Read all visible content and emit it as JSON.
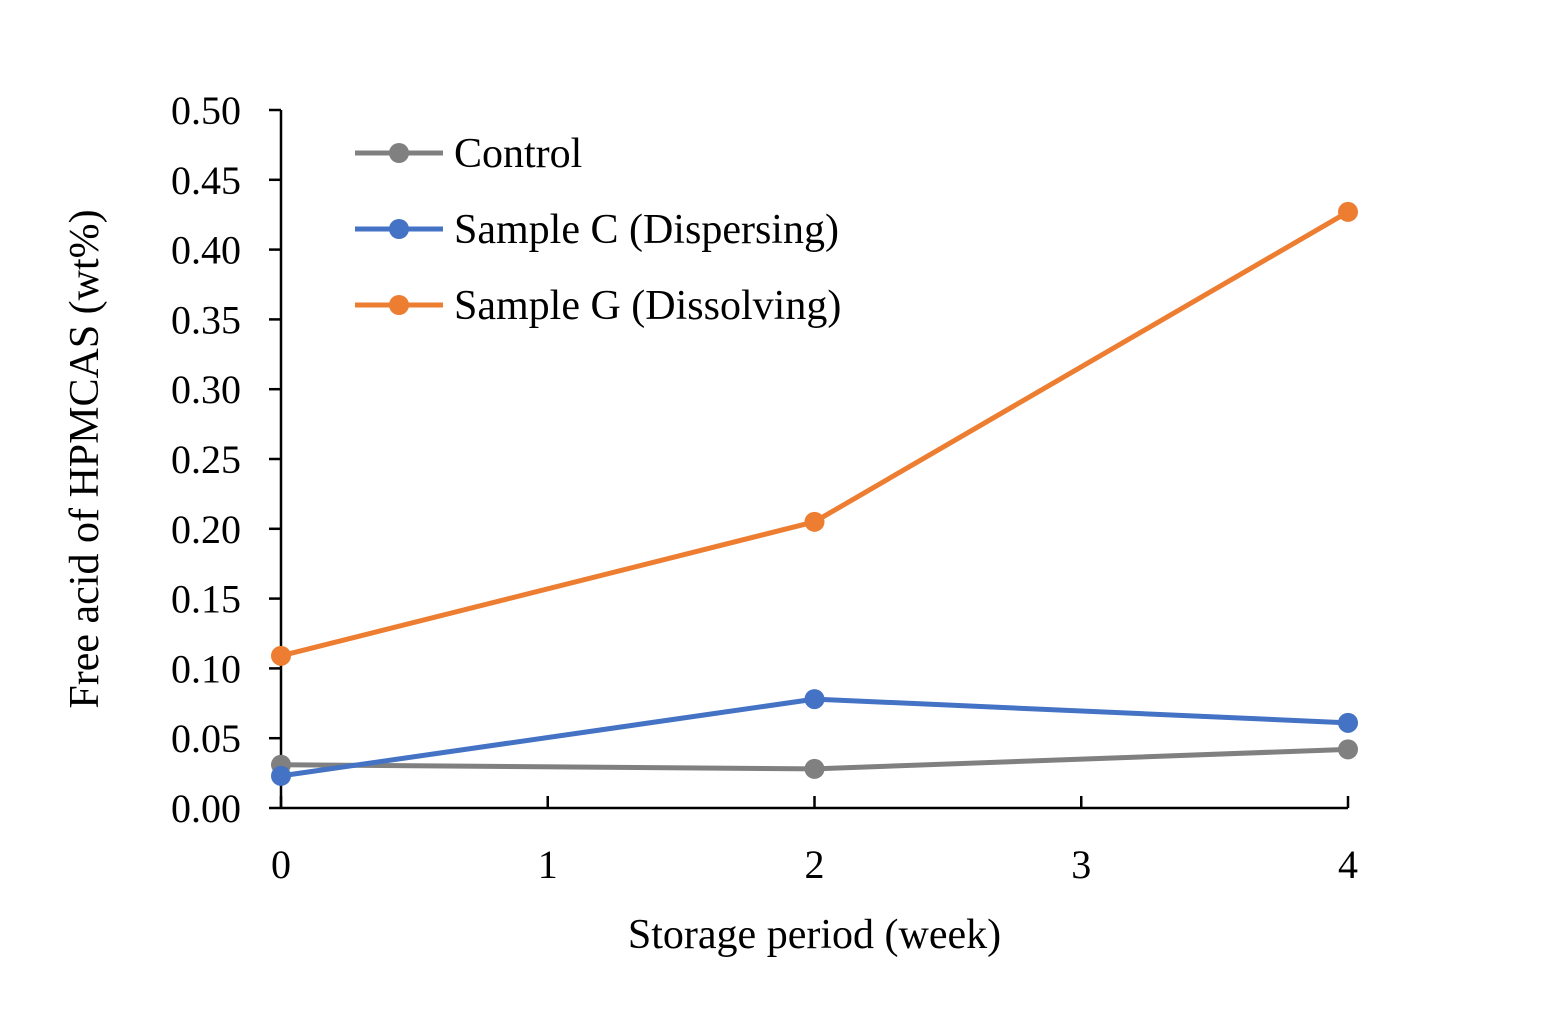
{
  "chart_data": {
    "type": "line",
    "title": "",
    "xlabel": "Storage period (week)",
    "ylabel": "Free acid of  HPMCAS (wt%)",
    "xlim": [
      0,
      4
    ],
    "ylim": [
      0,
      0.5
    ],
    "x_ticks": [
      "0",
      "1",
      "2",
      "3",
      "4"
    ],
    "y_ticks": [
      "0.00",
      "0.05",
      "0.10",
      "0.15",
      "0.20",
      "0.25",
      "0.30",
      "0.35",
      "0.40",
      "0.45",
      "0.50"
    ],
    "grid": false,
    "legend_position": "top-left",
    "series": [
      {
        "name": "Control",
        "color": "#808080",
        "x": [
          0,
          2,
          4
        ],
        "y": [
          0.031,
          0.028,
          0.042
        ]
      },
      {
        "name": "Sample C (Dispersing)",
        "color": "#4472C4",
        "x": [
          0,
          2,
          4
        ],
        "y": [
          0.023,
          0.078,
          0.061
        ]
      },
      {
        "name": "Sample G (Dissolving)",
        "color": "#ED7D31",
        "x": [
          0,
          2,
          4
        ],
        "y": [
          0.109,
          0.205,
          0.427
        ]
      }
    ]
  }
}
